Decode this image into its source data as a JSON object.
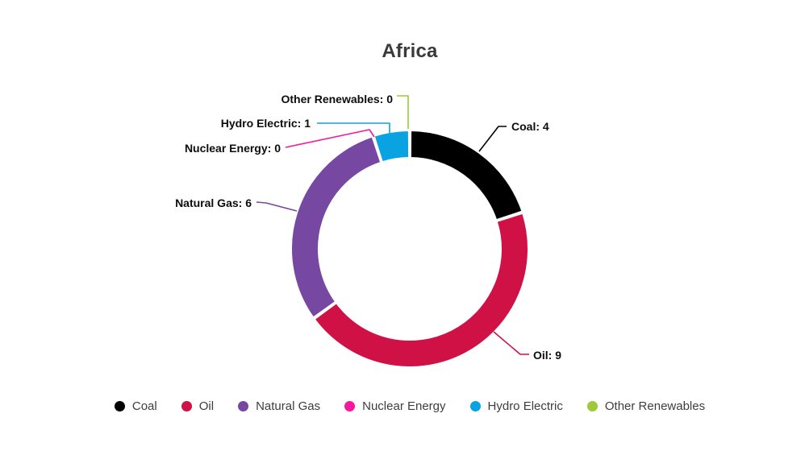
{
  "page": {
    "background": "#ffffff"
  },
  "chart_data": {
    "type": "pie",
    "subtype": "donut",
    "title": "Africa",
    "categories": [
      "Coal",
      "Oil",
      "Natural Gas",
      "Nuclear Energy",
      "Hydro Electric",
      "Other Renewables"
    ],
    "values": [
      4,
      9,
      6,
      0,
      1,
      0
    ],
    "total": 20,
    "colors": [
      "#000000",
      "#D01146",
      "#7748A2",
      "#F5189D",
      "#0AA3E2",
      "#9CCA3B"
    ],
    "data_labels": [
      "Coal: 4",
      "Oil: 9",
      "Natural Gas: 6",
      "Nuclear Energy: 0",
      "Hydro Electric: 1",
      "Other Renewables: 0"
    ],
    "start_angle_deg": 0,
    "direction": "clockwise",
    "inner_radius_ratio": 0.77,
    "legend_position": "bottom",
    "slice_gap_color": "#ffffff"
  },
  "legend": {
    "items": [
      {
        "label": "Coal",
        "color": "#000000"
      },
      {
        "label": "Oil",
        "color": "#D01146"
      },
      {
        "label": "Natural Gas",
        "color": "#7748A2"
      },
      {
        "label": "Nuclear Energy",
        "color": "#F5189D"
      },
      {
        "label": "Hydro Electric",
        "color": "#0AA3E2"
      },
      {
        "label": "Other Renewables",
        "color": "#9CCA3B"
      }
    ]
  }
}
